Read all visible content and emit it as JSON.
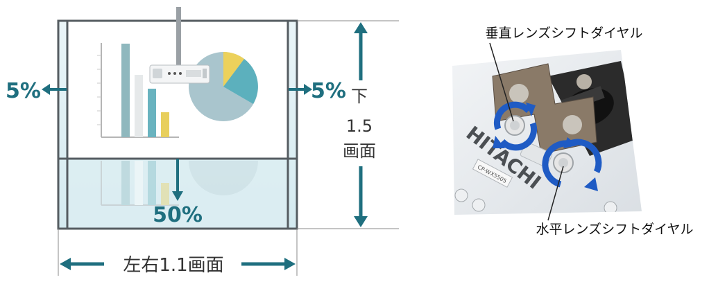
{
  "left_diagram": {
    "shift_left_label": "5%",
    "shift_right_label": "5%",
    "shift_down_label": "50%",
    "vertical_range_line1": "下",
    "vertical_range_line2": "1.5",
    "vertical_range_line3": "画面",
    "horizontal_range_label": "左右1.1画面",
    "accent_color": "#1f6f7f",
    "screen_tint": "#d8ecf1"
  },
  "right_photo": {
    "vertical_dial_label": "垂直レンズシフトダイヤル",
    "horizontal_dial_label": "水平レンズシフトダイヤル",
    "brand_text": "HITACHI",
    "model_text": "CP-WX5505",
    "arrow_color": "#1f5bc4"
  }
}
